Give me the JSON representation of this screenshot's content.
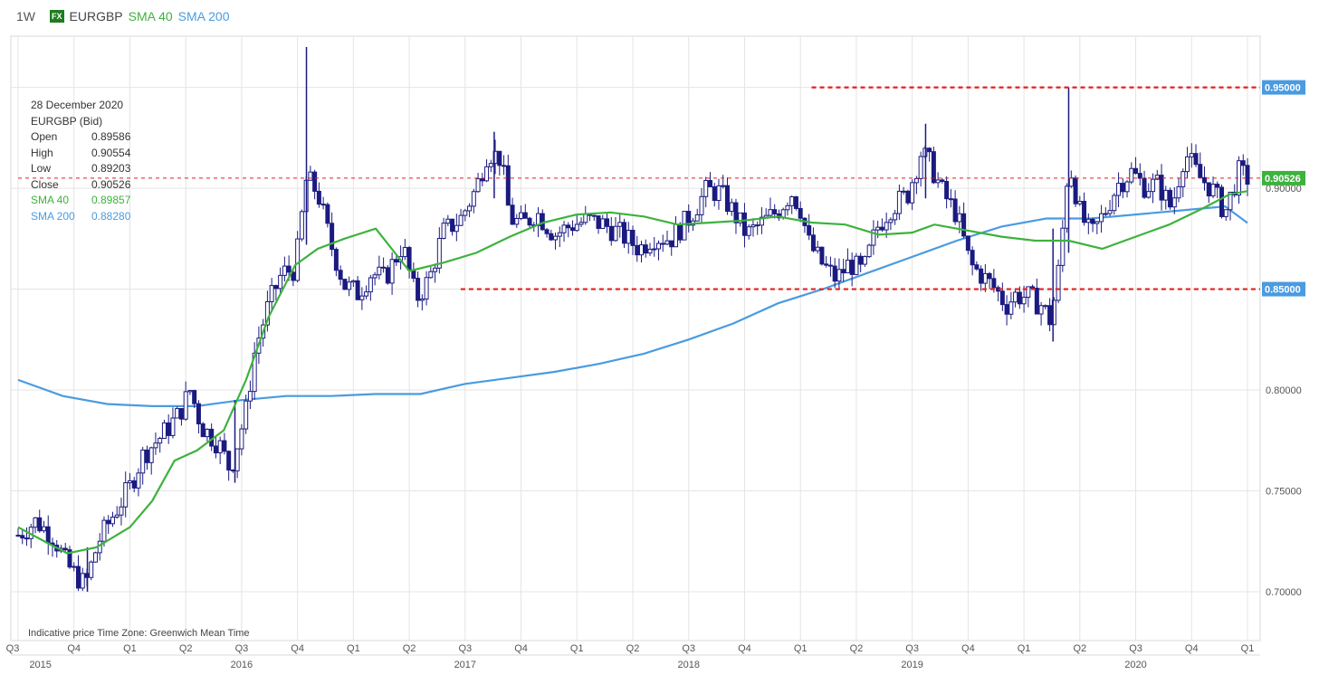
{
  "header": {
    "timeframe": "1W",
    "fx_badge": "FX",
    "symbol": "EURGBP",
    "sma40_label": "SMA 40",
    "sma200_label": "SMA 200"
  },
  "info": {
    "date": "28 December 2020",
    "instrument": "EURGBP (Bid)",
    "rows": [
      {
        "label": "Open",
        "value": "0.89586"
      },
      {
        "label": "High",
        "value": "0.90554"
      },
      {
        "label": "Low",
        "value": "0.89203"
      },
      {
        "label": "Close",
        "value": "0.90526"
      },
      {
        "label": "SMA 40",
        "value": "0.89857"
      },
      {
        "label": "SMA 200",
        "value": "0.88280"
      }
    ]
  },
  "footnote": "Indicative price    Time Zone: Greenwich Mean Time",
  "colors": {
    "candles": "#1a1a80",
    "sma40": "#3db23d",
    "sma200": "#4a9be0",
    "levels": "#e02020",
    "grid": "#e4e4e4"
  },
  "chart_data": {
    "type": "candlestick",
    "ylim": [
      0.68,
      0.98
    ],
    "y_ticks": [
      "0.70000",
      "0.75000",
      "0.80000",
      "0.85000",
      "0.90000",
      "0.95000"
    ],
    "price_tags": [
      {
        "value": 0.95,
        "label": "0.95000",
        "color": "#4a9be0"
      },
      {
        "value": 0.905,
        "label": "0.90526",
        "color": "#3db23d"
      },
      {
        "value": 0.85,
        "label": "0.85000",
        "color": "#4a9be0"
      }
    ],
    "x_quarters": [
      {
        "label": "Q3",
        "t": 2015.5
      },
      {
        "label": "Q4",
        "t": 2015.75
      },
      {
        "label": "Q1",
        "t": 2016.0
      },
      {
        "label": "Q2",
        "t": 2016.25
      },
      {
        "label": "Q3",
        "t": 2016.5
      },
      {
        "label": "Q4",
        "t": 2016.75
      },
      {
        "label": "Q1",
        "t": 2017.0
      },
      {
        "label": "Q2",
        "t": 2017.25
      },
      {
        "label": "Q3",
        "t": 2017.5
      },
      {
        "label": "Q4",
        "t": 2017.75
      },
      {
        "label": "Q1",
        "t": 2018.0
      },
      {
        "label": "Q2",
        "t": 2018.25
      },
      {
        "label": "Q3",
        "t": 2018.5
      },
      {
        "label": "Q4",
        "t": 2018.75
      },
      {
        "label": "Q1",
        "t": 2019.0
      },
      {
        "label": "Q2",
        "t": 2019.25
      },
      {
        "label": "Q3",
        "t": 2019.5
      },
      {
        "label": "Q4",
        "t": 2019.75
      },
      {
        "label": "Q1",
        "t": 2020.0
      },
      {
        "label": "Q2",
        "t": 2020.25
      },
      {
        "label": "Q3",
        "t": 2020.5
      },
      {
        "label": "Q4",
        "t": 2020.75
      },
      {
        "label": "Q1",
        "t": 2021.0
      }
    ],
    "x_years": [
      {
        "label": "2015",
        "t": 2015.6
      },
      {
        "label": "2016",
        "t": 2016.5
      },
      {
        "label": "2017",
        "t": 2017.5
      },
      {
        "label": "2018",
        "t": 2018.5
      },
      {
        "label": "2019",
        "t": 2019.5
      },
      {
        "label": "2020",
        "t": 2020.5
      }
    ],
    "x_range": [
      2015.5,
      2021.07
    ],
    "closes_anchors": [
      [
        2015.5,
        0.728
      ],
      [
        2015.58,
        0.735
      ],
      [
        2015.66,
        0.727
      ],
      [
        2015.72,
        0.713
      ],
      [
        2015.8,
        0.703
      ],
      [
        2015.86,
        0.725
      ],
      [
        2015.92,
        0.737
      ],
      [
        2016.0,
        0.752
      ],
      [
        2016.06,
        0.768
      ],
      [
        2016.14,
        0.777
      ],
      [
        2016.22,
        0.788
      ],
      [
        2016.27,
        0.8
      ],
      [
        2016.32,
        0.782
      ],
      [
        2016.4,
        0.773
      ],
      [
        2016.45,
        0.76
      ],
      [
        2016.52,
        0.79
      ],
      [
        2016.56,
        0.82
      ],
      [
        2016.62,
        0.842
      ],
      [
        2016.68,
        0.858
      ],
      [
        2016.74,
        0.86
      ],
      [
        2016.79,
        0.905
      ],
      [
        2016.84,
        0.898
      ],
      [
        2016.9,
        0.872
      ],
      [
        2016.96,
        0.852
      ],
      [
        2017.02,
        0.848
      ],
      [
        2017.08,
        0.858
      ],
      [
        2017.14,
        0.855
      ],
      [
        2017.22,
        0.872
      ],
      [
        2017.28,
        0.845
      ],
      [
        2017.34,
        0.855
      ],
      [
        2017.4,
        0.878
      ],
      [
        2017.48,
        0.885
      ],
      [
        2017.55,
        0.9
      ],
      [
        2017.6,
        0.918
      ],
      [
        2017.66,
        0.915
      ],
      [
        2017.7,
        0.885
      ],
      [
        2017.76,
        0.882
      ],
      [
        2017.82,
        0.888
      ],
      [
        2017.9,
        0.877
      ],
      [
        2017.98,
        0.882
      ],
      [
        2018.05,
        0.884
      ],
      [
        2018.12,
        0.882
      ],
      [
        2018.2,
        0.877
      ],
      [
        2018.28,
        0.87
      ],
      [
        2018.34,
        0.876
      ],
      [
        2018.42,
        0.875
      ],
      [
        2018.5,
        0.885
      ],
      [
        2018.58,
        0.899
      ],
      [
        2018.64,
        0.898
      ],
      [
        2018.7,
        0.888
      ],
      [
        2018.76,
        0.877
      ],
      [
        2018.82,
        0.882
      ],
      [
        2018.9,
        0.889
      ],
      [
        2018.96,
        0.898
      ],
      [
        2019.0,
        0.89
      ],
      [
        2019.04,
        0.872
      ],
      [
        2019.1,
        0.862
      ],
      [
        2019.16,
        0.855
      ],
      [
        2019.22,
        0.863
      ],
      [
        2019.28,
        0.858
      ],
      [
        2019.34,
        0.88
      ],
      [
        2019.4,
        0.89
      ],
      [
        2019.48,
        0.897
      ],
      [
        2019.54,
        0.918
      ],
      [
        2019.58,
        0.912
      ],
      [
        2019.64,
        0.897
      ],
      [
        2019.7,
        0.887
      ],
      [
        2019.76,
        0.862
      ],
      [
        2019.82,
        0.856
      ],
      [
        2019.88,
        0.849
      ],
      [
        2019.92,
        0.842
      ],
      [
        2019.96,
        0.847
      ],
      [
        2020.02,
        0.846
      ],
      [
        2020.08,
        0.842
      ],
      [
        2020.12,
        0.834
      ],
      [
        2020.16,
        0.863
      ],
      [
        2020.2,
        0.914
      ],
      [
        2020.25,
        0.888
      ],
      [
        2020.3,
        0.876
      ],
      [
        2020.36,
        0.888
      ],
      [
        2020.42,
        0.902
      ],
      [
        2020.48,
        0.908
      ],
      [
        2020.54,
        0.901
      ],
      [
        2020.6,
        0.902
      ],
      [
        2020.66,
        0.89
      ],
      [
        2020.72,
        0.918
      ],
      [
        2020.78,
        0.906
      ],
      [
        2020.84,
        0.9
      ],
      [
        2020.9,
        0.888
      ],
      [
        2020.96,
        0.908
      ],
      [
        2021.0,
        0.905
      ]
    ],
    "spikes": [
      {
        "t": 2016.79,
        "high": 0.97,
        "low": 0.872
      },
      {
        "t": 2017.63,
        "high": 0.928,
        "low": 0.895
      },
      {
        "t": 2019.56,
        "high": 0.932,
        "low": 0.895
      },
      {
        "t": 2020.2,
        "high": 0.95,
        "low": 0.868
      },
      {
        "t": 2020.13,
        "high": 0.88,
        "low": 0.824
      },
      {
        "t": 2015.81,
        "high": 0.722,
        "low": 0.7
      },
      {
        "t": 2016.47,
        "high": 0.795,
        "low": 0.754
      }
    ],
    "sma40": [
      [
        2015.5,
        0.732
      ],
      [
        2015.6,
        0.726
      ],
      [
        2015.72,
        0.719
      ],
      [
        2015.85,
        0.722
      ],
      [
        2016.0,
        0.732
      ],
      [
        2016.1,
        0.745
      ],
      [
        2016.2,
        0.765
      ],
      [
        2016.3,
        0.77
      ],
      [
        2016.42,
        0.78
      ],
      [
        2016.52,
        0.805
      ],
      [
        2016.62,
        0.836
      ],
      [
        2016.74,
        0.862
      ],
      [
        2016.84,
        0.87
      ],
      [
        2016.96,
        0.875
      ],
      [
        2017.1,
        0.88
      ],
      [
        2017.25,
        0.859
      ],
      [
        2017.4,
        0.863
      ],
      [
        2017.55,
        0.868
      ],
      [
        2017.7,
        0.876
      ],
      [
        2017.85,
        0.883
      ],
      [
        2018.0,
        0.887
      ],
      [
        2018.15,
        0.888
      ],
      [
        2018.3,
        0.886
      ],
      [
        2018.45,
        0.882
      ],
      [
        2018.6,
        0.883
      ],
      [
        2018.75,
        0.884
      ],
      [
        2018.9,
        0.886
      ],
      [
        2019.05,
        0.883
      ],
      [
        2019.2,
        0.882
      ],
      [
        2019.35,
        0.877
      ],
      [
        2019.5,
        0.878
      ],
      [
        2019.6,
        0.882
      ],
      [
        2019.75,
        0.879
      ],
      [
        2019.9,
        0.876
      ],
      [
        2020.05,
        0.874
      ],
      [
        2020.2,
        0.874
      ],
      [
        2020.35,
        0.87
      ],
      [
        2020.5,
        0.876
      ],
      [
        2020.65,
        0.882
      ],
      [
        2020.8,
        0.89
      ],
      [
        2020.92,
        0.897
      ],
      [
        2021.0,
        0.8986
      ]
    ],
    "sma200": [
      [
        2015.5,
        0.805
      ],
      [
        2015.7,
        0.797
      ],
      [
        2015.9,
        0.793
      ],
      [
        2016.1,
        0.792
      ],
      [
        2016.3,
        0.792
      ],
      [
        2016.5,
        0.795
      ],
      [
        2016.7,
        0.797
      ],
      [
        2016.9,
        0.797
      ],
      [
        2017.1,
        0.798
      ],
      [
        2017.3,
        0.798
      ],
      [
        2017.5,
        0.803
      ],
      [
        2017.7,
        0.806
      ],
      [
        2017.9,
        0.809
      ],
      [
        2018.1,
        0.813
      ],
      [
        2018.3,
        0.818
      ],
      [
        2018.5,
        0.825
      ],
      [
        2018.7,
        0.833
      ],
      [
        2018.9,
        0.843
      ],
      [
        2019.1,
        0.85
      ],
      [
        2019.3,
        0.858
      ],
      [
        2019.5,
        0.866
      ],
      [
        2019.7,
        0.874
      ],
      [
        2019.9,
        0.881
      ],
      [
        2020.1,
        0.885
      ],
      [
        2020.3,
        0.885
      ],
      [
        2020.5,
        0.887
      ],
      [
        2020.7,
        0.889
      ],
      [
        2020.9,
        0.891
      ],
      [
        2021.0,
        0.8828
      ]
    ],
    "levels": [
      {
        "value": 0.95,
        "from": 2019.05,
        "to": 2021.07
      },
      {
        "value": 0.905,
        "from": 2015.5,
        "to": 2021.07,
        "thin": true
      },
      {
        "value": 0.85,
        "from": 2017.48,
        "to": 2021.07
      }
    ]
  }
}
